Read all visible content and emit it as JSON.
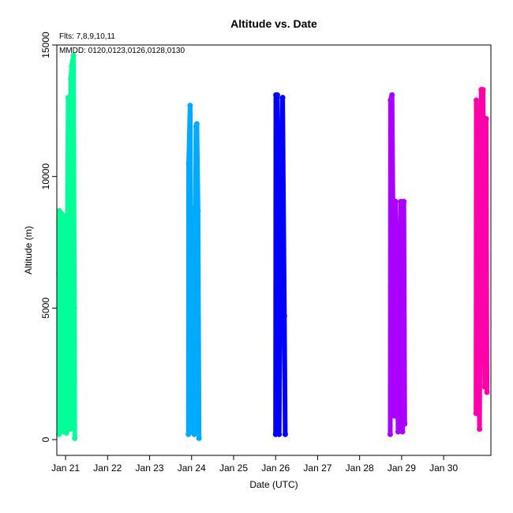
{
  "chart_data": {
    "type": "scatter",
    "title": "Altitude  vs. Date",
    "xlabel": "Date (UTC)",
    "ylabel": "Altitude (m)",
    "annotations": [
      "Flts: 7,8,9,10,11",
      "MMDD: 0120,0123,0126,0128,0130"
    ],
    "ylim": [
      -600,
      15000
    ],
    "yticks": [
      0,
      5000,
      10000,
      15000
    ],
    "xlim": [
      "2024-01-20T19:00",
      "2024-01-31T03:00"
    ],
    "xticks": [
      {
        "date": "2024-01-21",
        "label": "Jan 21"
      },
      {
        "date": "2024-01-22",
        "label": "Jan 22"
      },
      {
        "date": "2024-01-23",
        "label": "Jan 23"
      },
      {
        "date": "2024-01-24",
        "label": "Jan 24"
      },
      {
        "date": "2024-01-25",
        "label": "Jan 25"
      },
      {
        "date": "2024-01-26",
        "label": "Jan 26"
      },
      {
        "date": "2024-01-27",
        "label": "Jan 27"
      },
      {
        "date": "2024-01-28",
        "label": "Jan 28"
      },
      {
        "date": "2024-01-29",
        "label": "Jan 29"
      },
      {
        "date": "2024-01-30",
        "label": "Jan 30"
      }
    ],
    "grid": false,
    "legend": "none",
    "series": [
      {
        "color": "#00ff99",
        "points": [
          [
            "2024-01-20T20:10",
            200
          ],
          [
            "2024-01-20T20:10",
            6300
          ],
          [
            "2024-01-20T20:25",
            8700
          ],
          [
            "2024-01-20T21:00",
            300
          ],
          [
            "2024-01-20T21:30",
            8600
          ],
          [
            "2024-01-20T22:30",
            300
          ],
          [
            "2024-01-20T23:30",
            8500
          ],
          [
            "2024-01-21T00:30",
            250
          ],
          [
            "2024-01-21T01:30",
            13000
          ],
          [
            "2024-01-21T02:30",
            400
          ],
          [
            "2024-01-21T03:00",
            13700
          ],
          [
            "2024-01-21T03:30",
            14200
          ],
          [
            "2024-01-21T04:30",
            14600
          ],
          [
            "2024-01-21T05:00",
            5000
          ],
          [
            "2024-01-21T05:15",
            50
          ]
        ]
      },
      {
        "color": "#00aaff",
        "points": [
          [
            "2024-01-23T22:10",
            200
          ],
          [
            "2024-01-23T22:20",
            10500
          ],
          [
            "2024-01-23T23:10",
            12700
          ],
          [
            "2024-01-24T00:00",
            300
          ],
          [
            "2024-01-24T00:45",
            8800
          ],
          [
            "2024-01-24T01:30",
            200
          ],
          [
            "2024-01-24T02:30",
            11900
          ],
          [
            "2024-01-24T03:00",
            12000
          ],
          [
            "2024-01-24T03:40",
            8700
          ],
          [
            "2024-01-24T04:15",
            50
          ]
        ]
      },
      {
        "color": "#0000ff",
        "points": [
          [
            "2024-01-26T00:00",
            200
          ],
          [
            "2024-01-26T00:10",
            13100
          ],
          [
            "2024-01-26T01:00",
            13100
          ],
          [
            "2024-01-26T01:30",
            3000
          ],
          [
            "2024-01-26T02:00",
            200
          ],
          [
            "2024-01-26T03:00",
            9000
          ],
          [
            "2024-01-26T04:00",
            13000
          ],
          [
            "2024-01-26T05:00",
            4700
          ],
          [
            "2024-01-26T05:30",
            200
          ]
        ]
      },
      {
        "color": "#aa00ff",
        "points": [
          [
            "2024-01-28T17:30",
            200
          ],
          [
            "2024-01-28T17:40",
            12900
          ],
          [
            "2024-01-28T18:30",
            13100
          ],
          [
            "2024-01-28T20:00",
            900
          ],
          [
            "2024-01-28T20:30",
            9050
          ],
          [
            "2024-01-28T22:00",
            300
          ],
          [
            "2024-01-28T23:30",
            9050
          ],
          [
            "2024-01-29T00:30",
            300
          ],
          [
            "2024-01-29T01:15",
            9050
          ],
          [
            "2024-01-29T01:45",
            600
          ]
        ]
      },
      {
        "color": "#ff00aa",
        "points": [
          [
            "2024-01-30T18:30",
            1000
          ],
          [
            "2024-01-30T18:40",
            12900
          ],
          [
            "2024-01-30T19:30",
            8000
          ],
          [
            "2024-01-30T20:30",
            400
          ],
          [
            "2024-01-30T21:30",
            13300
          ],
          [
            "2024-01-30T22:30",
            13300
          ],
          [
            "2024-01-30T23:30",
            2000
          ],
          [
            "2024-01-31T00:15",
            12200
          ],
          [
            "2024-01-31T00:45",
            1800
          ]
        ]
      }
    ]
  }
}
